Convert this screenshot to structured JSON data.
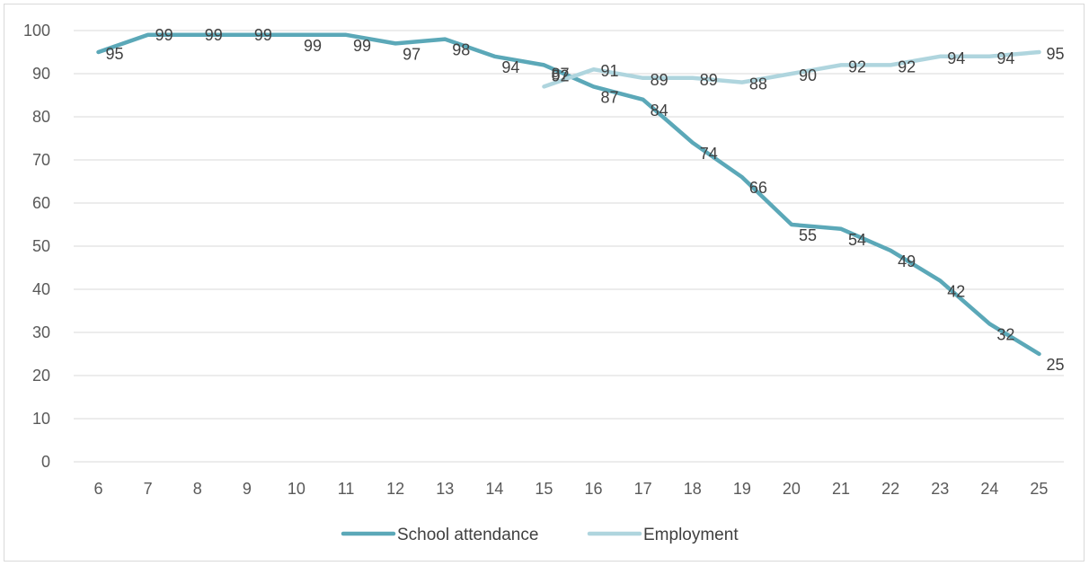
{
  "chart_data": {
    "type": "line",
    "title": "",
    "xlabel": "",
    "ylabel": "",
    "x": [
      6,
      7,
      8,
      9,
      10,
      11,
      12,
      13,
      14,
      15,
      16,
      17,
      18,
      19,
      20,
      21,
      22,
      23,
      24,
      25
    ],
    "ylim": [
      0,
      100
    ],
    "yticks": [
      0,
      10,
      20,
      30,
      40,
      50,
      60,
      70,
      80,
      90,
      100
    ],
    "grid": true,
    "legend_position": "bottom",
    "series": [
      {
        "name": "School attendance",
        "color": "#5ba8b8",
        "values": [
          95,
          99,
          99,
          99,
          99,
          99,
          97,
          98,
          94,
          92,
          87,
          84,
          74,
          66,
          55,
          54,
          49,
          42,
          32,
          25
        ]
      },
      {
        "name": "Employment",
        "color": "#afd5de",
        "values": [
          null,
          null,
          null,
          null,
          null,
          null,
          null,
          null,
          null,
          87,
          91,
          89,
          89,
          88,
          90,
          92,
          92,
          94,
          94,
          95
        ]
      }
    ]
  }
}
